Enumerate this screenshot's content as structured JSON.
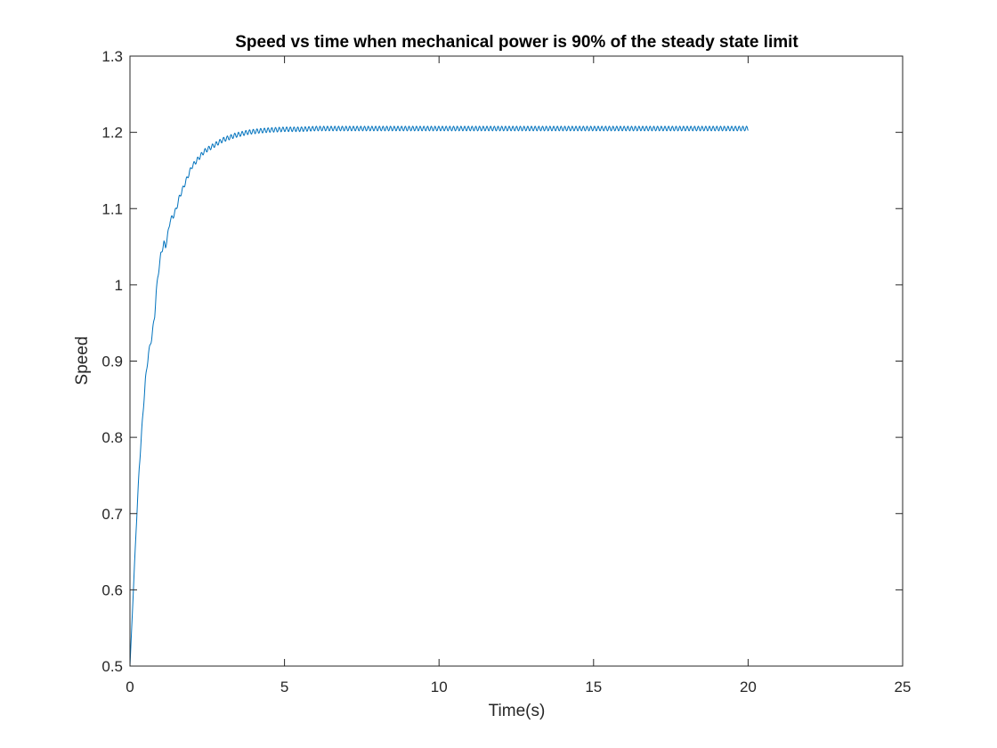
{
  "chart_data": {
    "type": "line",
    "title": "Speed vs time when mechanical power is 90% of the steady state limit",
    "xlabel": "Time(s)",
    "ylabel": "Speed",
    "xlim": [
      0,
      25
    ],
    "ylim": [
      0.5,
      1.3
    ],
    "xticks": [
      0,
      5,
      10,
      15,
      20,
      25
    ],
    "yticks": [
      0.5,
      0.6,
      0.7,
      0.8,
      0.9,
      1.0,
      1.1,
      1.2,
      1.3
    ],
    "xtick_labels": [
      "0",
      "5",
      "10",
      "15",
      "20",
      "25"
    ],
    "ytick_labels": [
      "0.5",
      "0.6",
      "0.7",
      "0.8",
      "0.9",
      "1",
      "1.1",
      "1.2",
      "1.3"
    ],
    "grid": false,
    "box": true,
    "series": [
      {
        "color": "#0072BD",
        "x": [
          0,
          0.1,
          0.2,
          0.3,
          0.4,
          0.5,
          0.6,
          0.7,
          0.8,
          0.85,
          0.9,
          1.0,
          1.1,
          1.15,
          1.2,
          1.3,
          1.4,
          1.5,
          1.6,
          1.7,
          1.8,
          1.9,
          2.0,
          2.2,
          2.4,
          2.6,
          2.8,
          3.0,
          3.2,
          3.4,
          3.6,
          3.8,
          4.0,
          4.2,
          4.5,
          5.0,
          5.5,
          6.0,
          7.0,
          8.0,
          10.0,
          12.0,
          14.0,
          16.0,
          18.0,
          20.0
        ],
        "y": [
          0.5,
          0.59,
          0.68,
          0.76,
          0.82,
          0.875,
          0.91,
          0.93,
          0.96,
          0.99,
          1.01,
          1.04,
          1.055,
          1.05,
          1.06,
          1.085,
          1.09,
          1.1,
          1.115,
          1.125,
          1.135,
          1.145,
          1.155,
          1.165,
          1.175,
          1.18,
          1.185,
          1.19,
          1.193,
          1.196,
          1.198,
          1.2,
          1.201,
          1.202,
          1.203,
          1.204,
          1.204,
          1.205,
          1.205,
          1.205,
          1.205,
          1.205,
          1.205,
          1.205,
          1.205,
          1.205
        ],
        "oscillation_amplitude": 0.003,
        "oscillation_period": 0.12
      }
    ]
  }
}
